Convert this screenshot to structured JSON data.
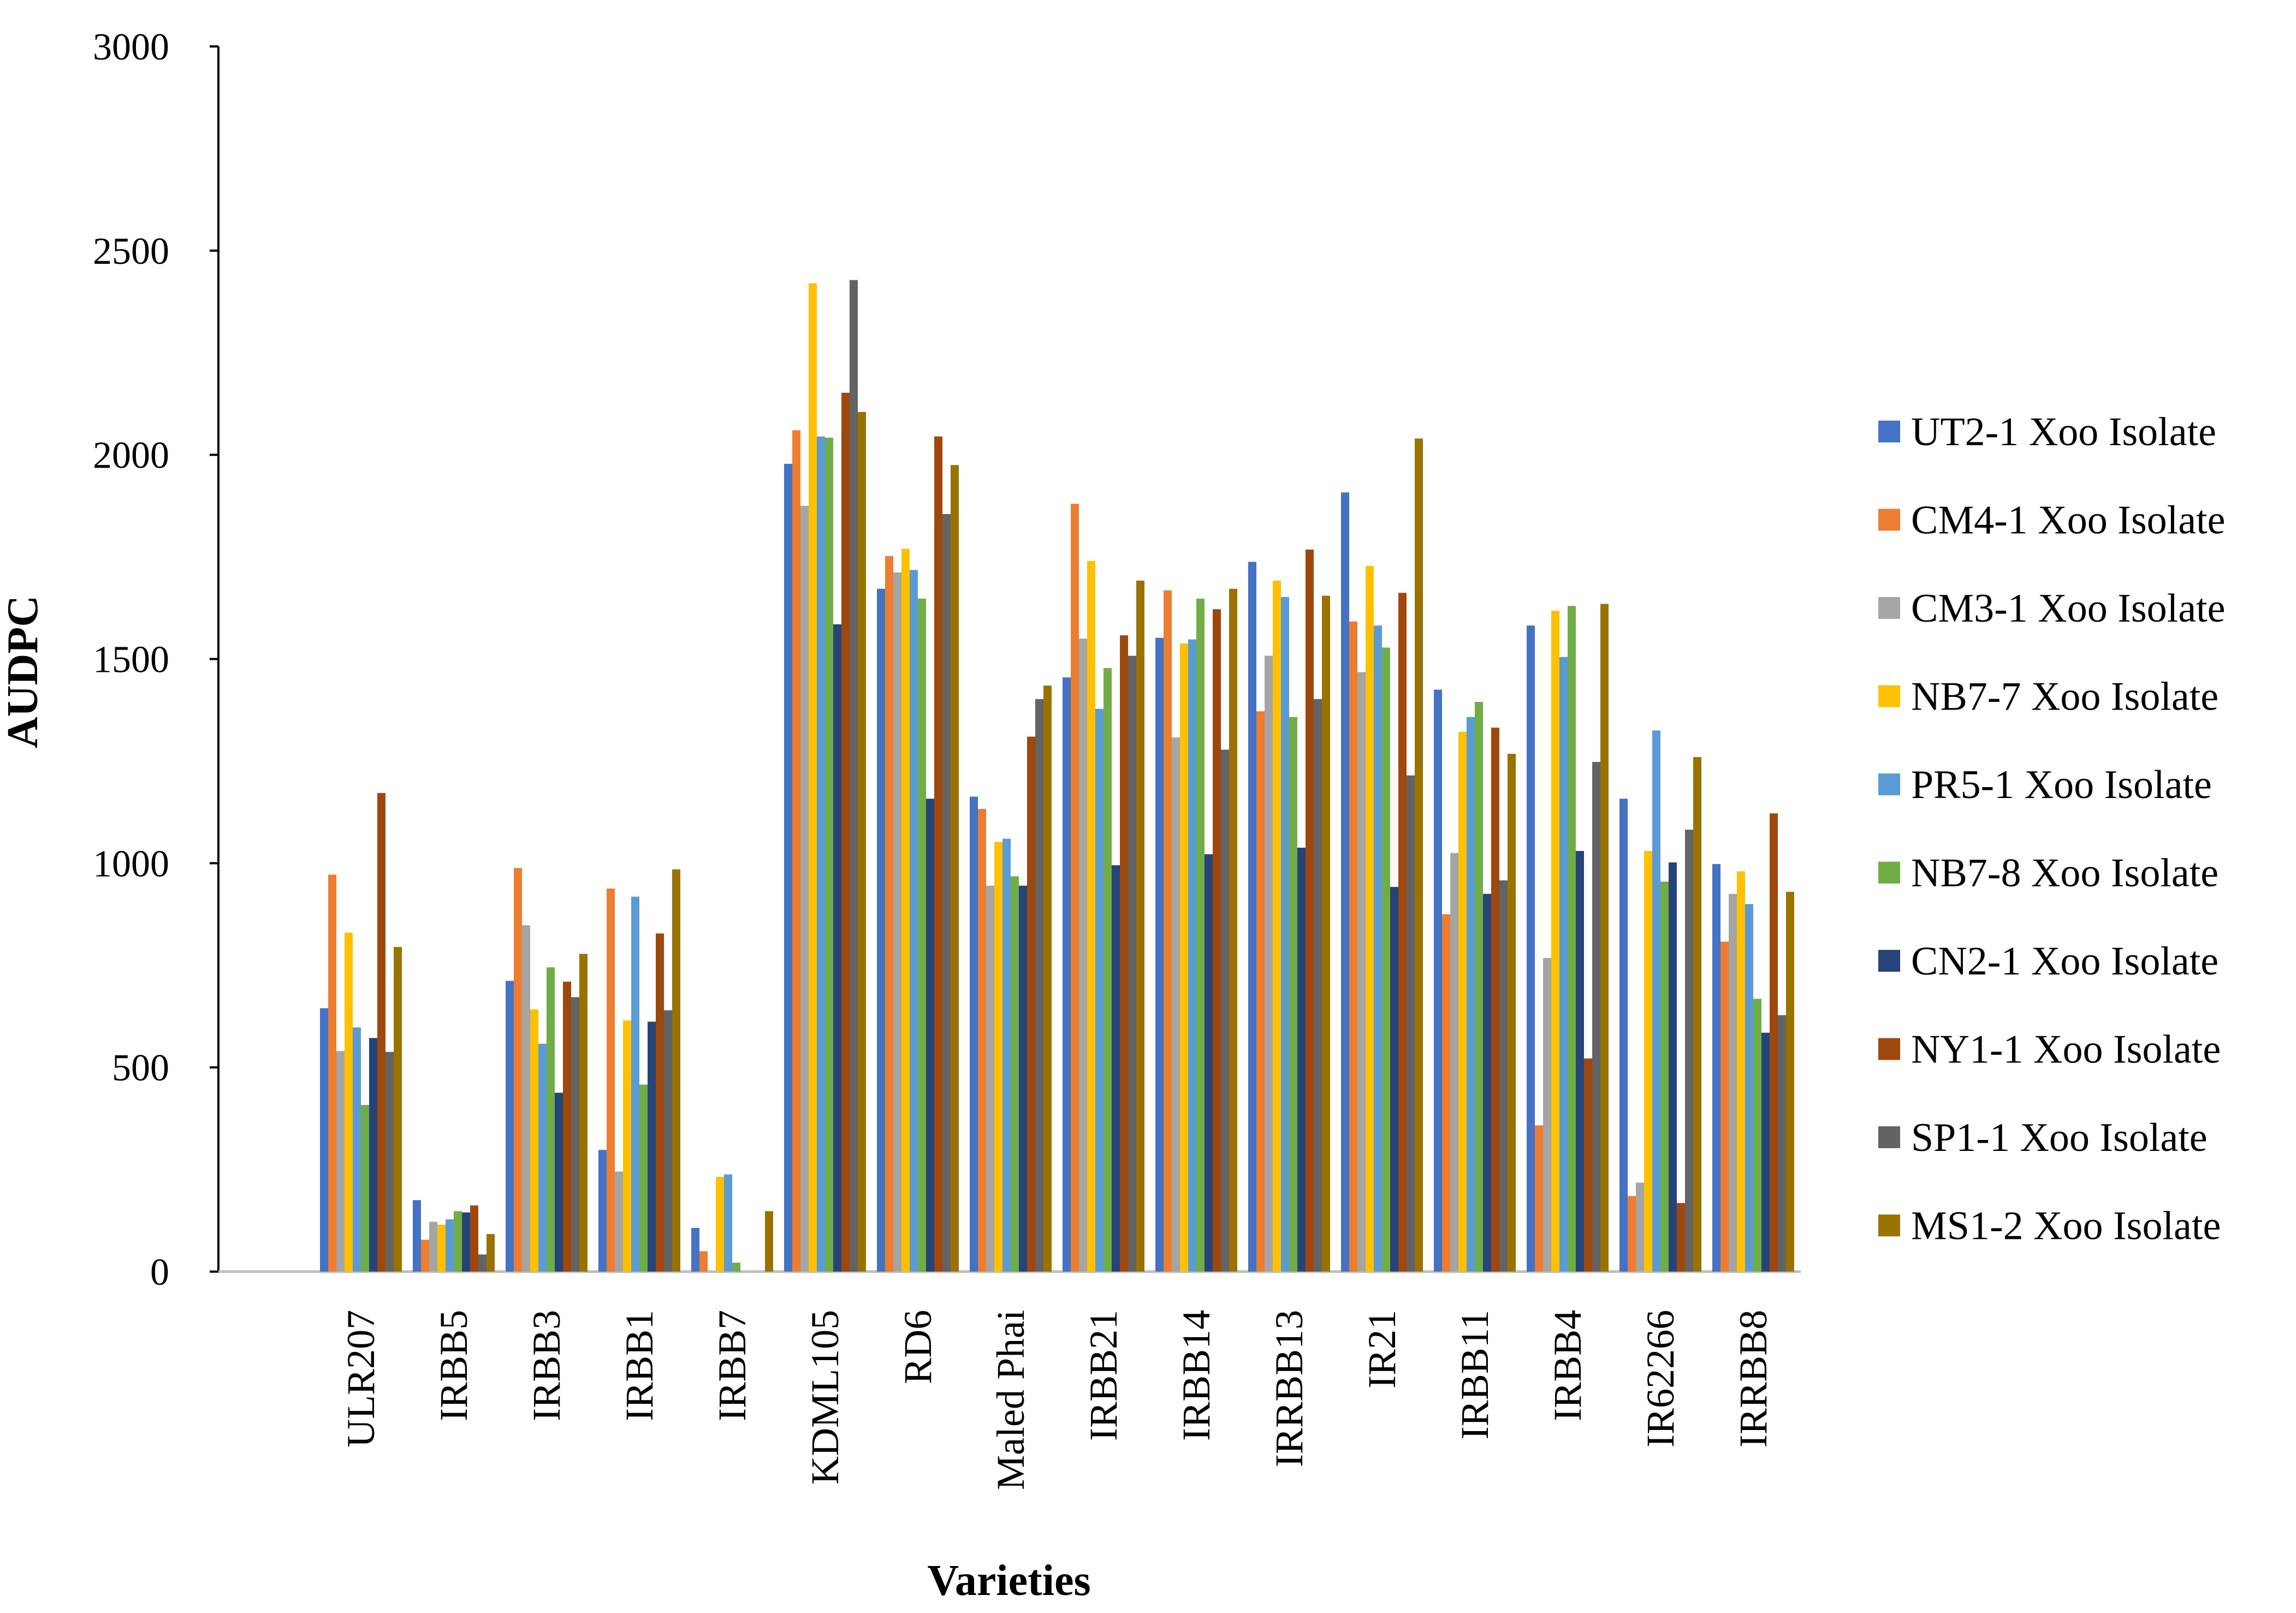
{
  "chart_data": {
    "type": "bar",
    "title": "",
    "xlabel": "Varieties",
    "ylabel": "AUDPC",
    "ylim": [
      0,
      3000
    ],
    "yticks": [
      0,
      500,
      1000,
      1500,
      2000,
      2500,
      3000
    ],
    "grid": false,
    "legend_position": "right",
    "categories": [
      "ULR207",
      "IRBB5",
      "IRBB3",
      "IRBB1",
      "IRBB7",
      "KDML105",
      "RD6",
      "Maled Phai",
      "IRBB21",
      "IRBB14",
      "IRRBB13",
      "IR21",
      "IRBB11",
      "IRBB4",
      "IR62266",
      "IRRBB8"
    ],
    "series": [
      {
        "name": "UT2-1 Xoo Isolate",
        "color": "#4472C4",
        "values": [
          645,
          175,
          712,
          298,
          107,
          1978,
          1672,
          1163,
          1455,
          1552,
          1738,
          1908,
          1425,
          1582,
          1158,
          998
        ]
      },
      {
        "name": "CM4-1 Xoo Isolate",
        "color": "#ED7D31",
        "values": [
          972,
          78,
          988,
          938,
          50,
          2060,
          1752,
          1133,
          1880,
          1668,
          1372,
          1592,
          875,
          358,
          185,
          808
        ]
      },
      {
        "name": "CM3-1 Xoo Isolate",
        "color": "#A5A5A5",
        "values": [
          540,
          122,
          848,
          245,
          0,
          1875,
          1712,
          945,
          1550,
          1308,
          1508,
          1468,
          1025,
          768,
          218,
          925
        ]
      },
      {
        "name": "NB7-7 Xoo Isolate",
        "color": "#FFC000",
        "values": [
          830,
          115,
          642,
          615,
          232,
          2420,
          1770,
          1052,
          1740,
          1538,
          1692,
          1728,
          1322,
          1618,
          1030,
          980
        ]
      },
      {
        "name": "PR5-1 Xoo Isolate",
        "color": "#5B9BD5",
        "values": [
          598,
          128,
          558,
          918,
          238,
          2045,
          1718,
          1060,
          1378,
          1548,
          1652,
          1582,
          1358,
          1505,
          1325,
          900
        ]
      },
      {
        "name": "NB7-8 Xoo Isolate",
        "color": "#70AD47",
        "values": [
          408,
          148,
          745,
          458,
          22,
          2042,
          1648,
          968,
          1478,
          1648,
          1358,
          1528,
          1395,
          1630,
          955,
          668
        ]
      },
      {
        "name": "CN2-1 Xoo Isolate",
        "color": "#264478",
        "values": [
          572,
          145,
          438,
          612,
          0,
          1585,
          1158,
          945,
          995,
          1022,
          1038,
          942,
          925,
          1030,
          1002,
          585
        ]
      },
      {
        "name": "NY1-1 Xoo Isolate",
        "color": "#9E480E",
        "values": [
          1172,
          162,
          710,
          828,
          0,
          2152,
          2045,
          1310,
          1558,
          1622,
          1768,
          1662,
          1332,
          522,
          168,
          1122
        ]
      },
      {
        "name": "SP1-1 Xoo Isolate",
        "color": "#636363",
        "values": [
          538,
          42,
          672,
          640,
          0,
          2428,
          1855,
          1402,
          1508,
          1278,
          1402,
          1215,
          958,
          1248,
          1082,
          628
        ]
      },
      {
        "name": "MS1-2 Xoo Isolate",
        "color": "#997300",
        "values": [
          795,
          92,
          778,
          985,
          148,
          2105,
          1975,
          1435,
          1692,
          1672,
          1655,
          2040,
          1268,
          1635,
          1260,
          930
        ]
      }
    ]
  }
}
